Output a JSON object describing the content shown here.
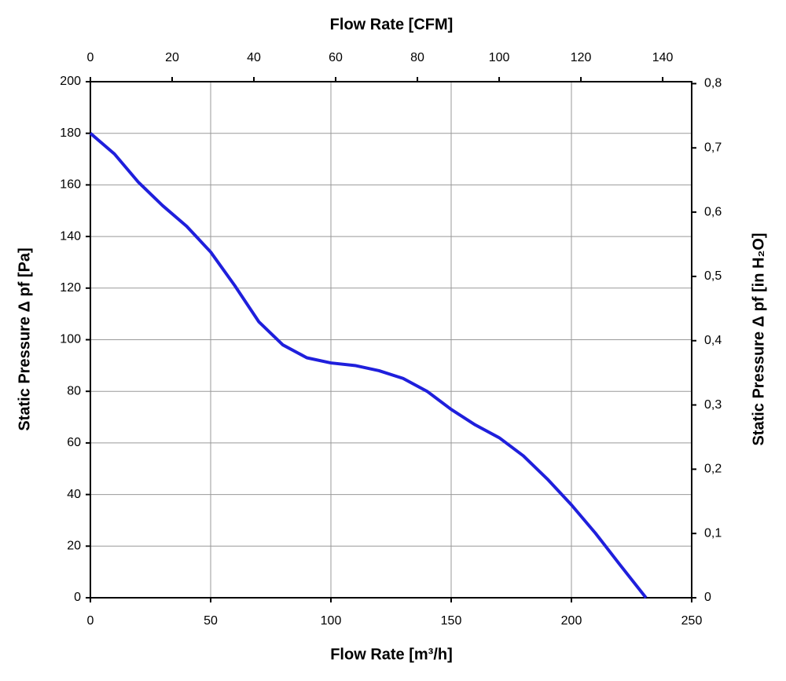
{
  "chart_data": {
    "type": "line",
    "x_label": "Flow Rate [m³/h]",
    "x2_label": "Flow Rate [CFM]",
    "y_label": "Static Pressure Δ pf [Pa]",
    "y2_label": "Static Pressure Δ pf [in H₂O]",
    "xlim": [
      0,
      250
    ],
    "xticks": [
      0,
      50,
      100,
      150,
      200,
      250
    ],
    "x2lim": [
      0,
      147.1
    ],
    "x2ticks": [
      0,
      20,
      40,
      60,
      80,
      100,
      120,
      140
    ],
    "ylim": [
      0,
      200
    ],
    "yticks": [
      0,
      20,
      40,
      60,
      80,
      100,
      120,
      140,
      160,
      180,
      200
    ],
    "y2lim": [
      0,
      0.803
    ],
    "y2ticks": [
      {
        "value": 0,
        "label": "0"
      },
      {
        "value": 0.1,
        "label": "0,1"
      },
      {
        "value": 0.2,
        "label": "0,2"
      },
      {
        "value": 0.3,
        "label": "0,3"
      },
      {
        "value": 0.4,
        "label": "0,4"
      },
      {
        "value": 0.5,
        "label": "0,5"
      },
      {
        "value": 0.6,
        "label": "0,6"
      },
      {
        "value": 0.7,
        "label": "0,7"
      },
      {
        "value": 0.8,
        "label": "0,8"
      }
    ],
    "grid": true,
    "series": [
      {
        "color": "#1f1fdc",
        "x": [
          0,
          10,
          20,
          30,
          40,
          50,
          60,
          70,
          80,
          90,
          100,
          110,
          120,
          130,
          140,
          150,
          160,
          170,
          180,
          190,
          200,
          210,
          220,
          231
        ],
        "values": [
          180,
          172,
          161,
          152,
          144,
          134,
          121,
          107,
          98,
          93,
          91,
          90,
          88,
          85,
          80,
          73,
          67,
          62,
          55,
          46,
          36,
          25,
          13,
          0
        ]
      }
    ]
  }
}
